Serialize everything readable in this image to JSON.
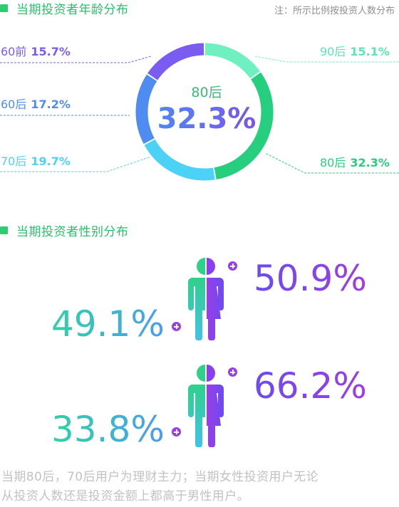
{
  "age_section": {
    "title": "当期投资者年龄分布",
    "note": "注：所示比例按投资人数分布",
    "center_label": "80后",
    "center_value": "32.3%"
  },
  "gender_section": {
    "title": "当期投资者性别分布",
    "rows": [
      {
        "male_label": "49.1%",
        "female_label": "50.9%"
      },
      {
        "male_label": "33.8%",
        "female_label": "66.2%"
      }
    ]
  },
  "footer": {
    "line1": "当期80后，70后用户为理财主力；当期女性投资用户无论",
    "line2": "从投资人数还是投资金额上都高于男性用户。"
  },
  "chart_data": [
    {
      "type": "pie",
      "title": "当期投资者年龄分布",
      "donut": true,
      "categories": [
        "90后",
        "80后",
        "70后",
        "60后",
        "60前"
      ],
      "values": [
        15.1,
        32.3,
        19.7,
        17.2,
        15.7
      ],
      "value_labels": [
        "15.1%",
        "32.3%",
        "19.7%",
        "17.2%",
        "15.7%"
      ],
      "colors": [
        "#6ff0c0",
        "#25cf7d",
        "#4cd2f6",
        "#4f8cf2",
        "#7a5cf0"
      ]
    },
    {
      "type": "bar",
      "title": "当期投资者性别分布",
      "series": [
        {
          "values": [
            49.1,
            33.8
          ]
        },
        {
          "values": [
            50.9,
            66.2
          ]
        }
      ]
    }
  ]
}
